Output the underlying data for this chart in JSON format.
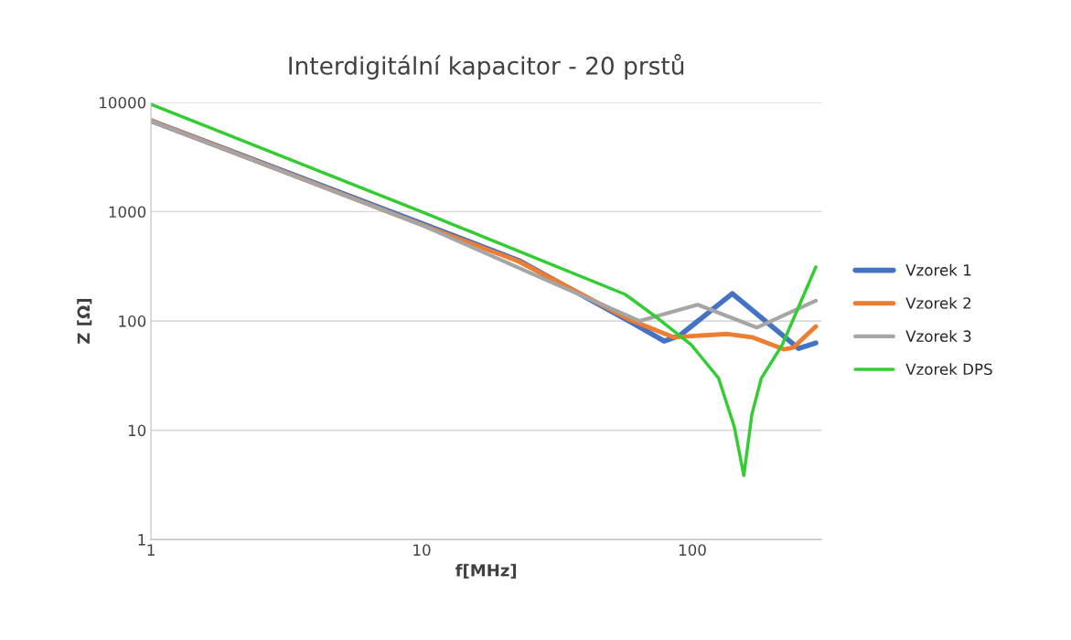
{
  "chart_data": {
    "type": "line",
    "title": "Interdigitální kapacitor - 20 prstů",
    "xlabel": "f[MHz]",
    "ylabel": "Z [Ω]",
    "log": "xy",
    "xlim": [
      1,
      300
    ],
    "xticks": [
      1,
      10,
      100
    ],
    "ylim": [
      1,
      10000
    ],
    "yticks": [
      1,
      10,
      100,
      1000,
      10000
    ],
    "grid": "y",
    "legend": "right",
    "line_style": "solid",
    "marker": "none",
    "series": [
      {
        "name": "Vzorek 1",
        "color": "#4472c4",
        "x": [
          1,
          10,
          22.9,
          59.1,
          78.7,
          89.8,
          140.5,
          188,
          247,
          286
        ],
        "values": [
          6800,
          782,
          357,
          98,
          65.5,
          73.5,
          178,
          98,
          56,
          63
        ]
      },
      {
        "name": "Vzorek 2",
        "color": "#ed7d31",
        "x": [
          1,
          10,
          22.9,
          59.1,
          85,
          135,
          166,
          218,
          236,
          286
        ],
        "values": [
          6800,
          760,
          350,
          102,
          71,
          76,
          71,
          55,
          57,
          89
        ]
      },
      {
        "name": "Vzorek 3",
        "color": "#a5a5a5",
        "x": [
          1,
          10,
          22.9,
          63.9,
          104.7,
          173,
          286
        ],
        "values": [
          6750,
          757,
          305,
          100,
          141,
          87,
          153
        ]
      },
      {
        "name": "Vzorek DPS",
        "color": "#33cc33",
        "x": [
          1,
          10,
          22.9,
          56.5,
          74.5,
          99.1,
          125,
          143,
          155,
          166,
          180,
          215,
          286
        ],
        "values": [
          9600,
          1000,
          433,
          175,
          106,
          60.6,
          30,
          10.7,
          3.85,
          14,
          30,
          60.6,
          312
        ]
      }
    ]
  }
}
